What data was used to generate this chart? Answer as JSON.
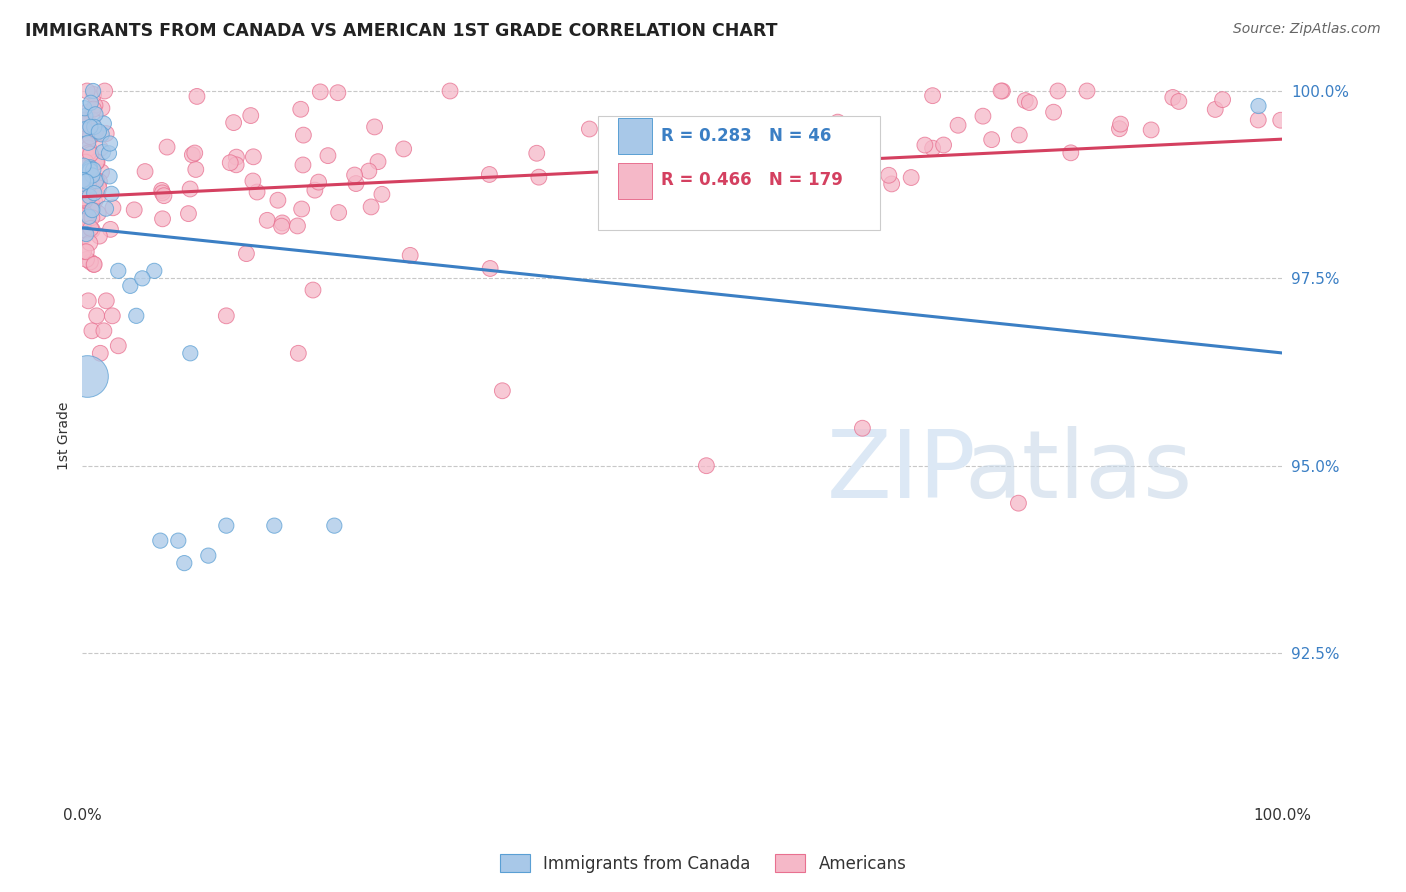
{
  "title": "IMMIGRANTS FROM CANADA VS AMERICAN 1ST GRADE CORRELATION CHART",
  "source": "Source: ZipAtlas.com",
  "ylabel": "1st Grade",
  "legend_canada": "Immigrants from Canada",
  "legend_americans": "Americans",
  "canada_R": "0.283",
  "canada_N": "46",
  "americans_R": "0.466",
  "americans_N": "179",
  "canada_color": "#a8c8e8",
  "canada_edge_color": "#5a9fd4",
  "canada_line_color": "#3b7fc4",
  "americans_color": "#f5b8c8",
  "americans_edge_color": "#e87090",
  "americans_line_color": "#d44060",
  "background_color": "#ffffff",
  "grid_color": "#c8c8c8",
  "watermark_color": "#dce8f5",
  "title_color": "#222222",
  "source_color": "#666666",
  "ytick_color": "#3b7fc4",
  "xtick_color": "#333333",
  "ylim_low": 0.905,
  "ylim_high": 1.003
}
